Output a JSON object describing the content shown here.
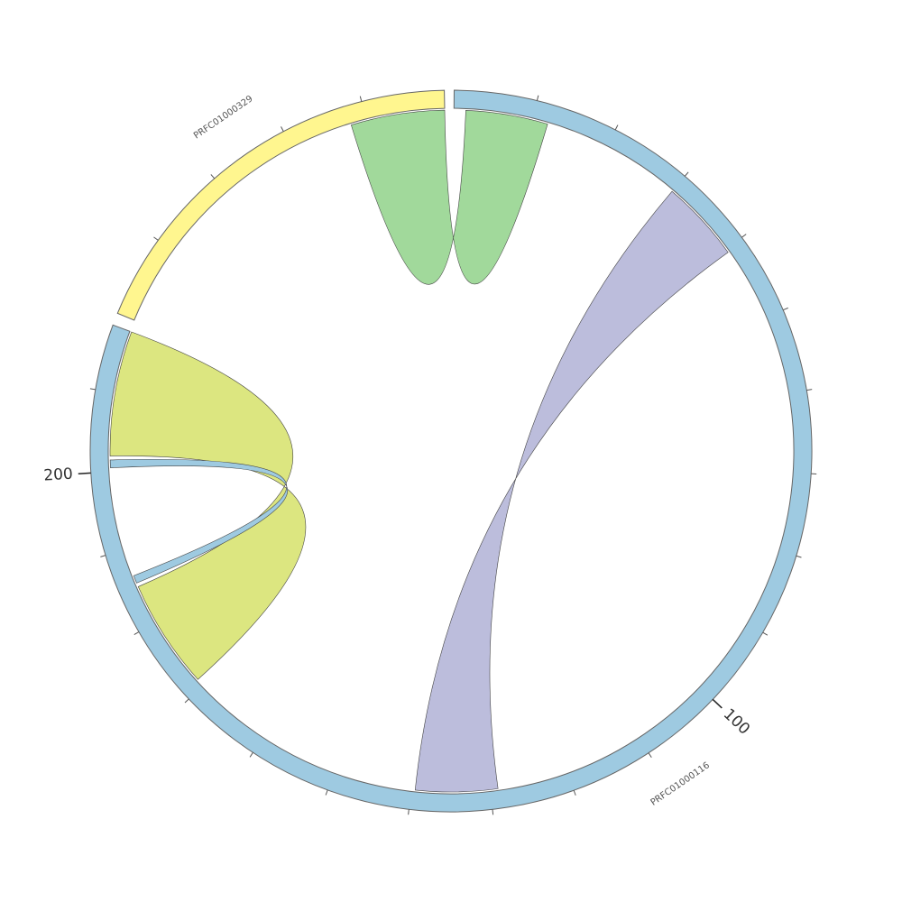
{
  "chart_data": {
    "type": "chord",
    "segments": [
      {
        "name": "PRFC01000116",
        "length": 218,
        "color": "#9ecae1",
        "major_ticks": [
          100,
          200
        ],
        "minor_ticks": [
          10,
          20,
          30,
          40,
          50,
          60,
          70,
          80,
          90,
          110,
          120,
          130,
          140,
          150,
          160,
          170,
          180,
          190,
          210
        ]
      },
      {
        "name": "PRFC01000329",
        "length": 50,
        "color": "#fff68f",
        "major_ticks": [],
        "minor_ticks": [
          10,
          20,
          30,
          40
        ]
      }
    ],
    "links": [
      {
        "color": "#a1d99b",
        "source": [
          0,
          1.5,
          12
        ],
        "target": [
          1,
          38,
          50
        ]
      },
      {
        "color": "#bcbddc",
        "source": [
          0,
          30,
          40.5
        ],
        "target": [
          0,
          129,
          139.5
        ]
      },
      {
        "color": "#dce680",
        "source": [
          0,
          202,
          218
        ],
        "target": [
          0,
          171,
          185
        ]
      },
      {
        "color": "#9ecae1",
        "source": [
          0,
          200.5,
          201.5
        ],
        "target": [
          0,
          185.5,
          186.5
        ]
      }
    ]
  }
}
